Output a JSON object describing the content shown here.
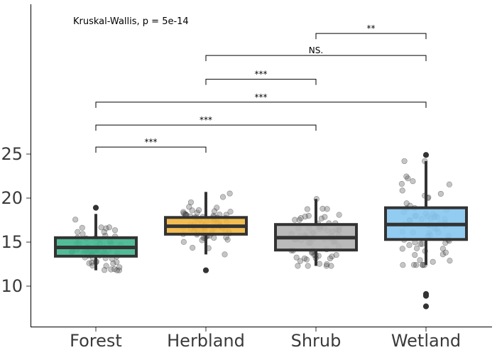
{
  "chart_data": {
    "type": "box",
    "categories": [
      "Forest",
      "Herbland",
      "Shrub",
      "Wetland"
    ],
    "colors": [
      "#3fb58e",
      "#f2b63f",
      "#b3b3b3",
      "#86c7ef"
    ],
    "y_ticks": [
      "10",
      "15",
      "20",
      "25"
    ],
    "ylim": [
      5.5,
      43
    ],
    "annotation": "Kruskal-Wallis, p = 5e-14",
    "boxes": [
      {
        "category": "Forest",
        "q1": 13.4,
        "median": 14.4,
        "q3": 15.5,
        "whisker_low": 11.8,
        "whisker_high": 18.2,
        "outliers": [
          18.9
        ]
      },
      {
        "category": "Herbland",
        "q1": 15.9,
        "median": 16.8,
        "q3": 17.8,
        "whisker_low": 13.6,
        "whisker_high": 20.7,
        "outliers": [
          11.8
        ]
      },
      {
        "category": "Shrub",
        "q1": 14.1,
        "median": 15.5,
        "q3": 17.0,
        "whisker_low": 12.3,
        "whisker_high": 19.9,
        "outliers": []
      },
      {
        "category": "Wetland",
        "q1": 15.3,
        "median": 17.0,
        "q3": 18.9,
        "whisker_low": 12.4,
        "whisker_high": 24.2,
        "outliers": [
          24.9,
          9.1,
          8.9,
          7.7
        ]
      }
    ],
    "comparisons": [
      {
        "from": 0,
        "to": 1,
        "label": "***",
        "y": 25.8
      },
      {
        "from": 0,
        "to": 2,
        "label": "***",
        "y": 28.3
      },
      {
        "from": 0,
        "to": 3,
        "label": "***",
        "y": 30.9
      },
      {
        "from": 1,
        "to": 2,
        "label": "***",
        "y": 33.5
      },
      {
        "from": 1,
        "to": 3,
        "label": "NS.",
        "y": 36.2
      },
      {
        "from": 2,
        "to": 3,
        "label": "**",
        "y": 38.7
      }
    ]
  }
}
